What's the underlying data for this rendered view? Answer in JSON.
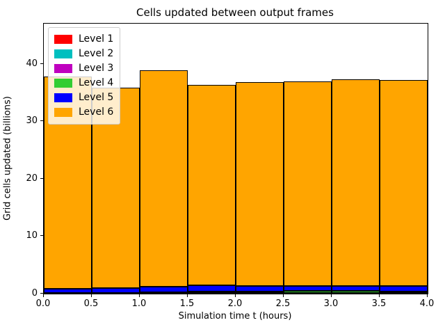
{
  "figure": {
    "background_color": "#ffffff",
    "axes_edge_color": "#000000",
    "legend_border_color": "#cccccc"
  },
  "chart_data": {
    "type": "bar",
    "stacked": true,
    "title": "Cells updated between output frames",
    "xlabel": "Simulation time t (hours)",
    "ylabel": "Grid cells updated (billions)",
    "xlim": [
      0,
      4
    ],
    "ylim": [
      0,
      47
    ],
    "bar_lefts": [
      0,
      0.5,
      1.0,
      1.5,
      2.0,
      2.5,
      3.0,
      3.5
    ],
    "bar_width": 0.5,
    "bar_edge_color": "#000000",
    "grid": false,
    "xticks": {
      "values": [
        0,
        0.5,
        1,
        1.5,
        2,
        2.5,
        3,
        3.5,
        4
      ],
      "labels": [
        "0.0",
        "0.5",
        "1.0",
        "1.5",
        "2.0",
        "2.5",
        "3.0",
        "3.5",
        "4.0"
      ]
    },
    "yticks": {
      "values": [
        0,
        10,
        20,
        30,
        40
      ],
      "labels": [
        "0",
        "10",
        "20",
        "30",
        "40"
      ]
    },
    "legend_position": "upper left",
    "series": [
      {
        "name": "Level 1",
        "color": "#ff0000",
        "values": [
          0.02,
          0.02,
          0.02,
          0.02,
          0.02,
          0.02,
          0.02,
          0.02
        ]
      },
      {
        "name": "Level 2",
        "color": "#00bfbf",
        "values": [
          0.03,
          0.03,
          0.03,
          0.03,
          0.03,
          0.03,
          0.03,
          0.03
        ]
      },
      {
        "name": "Level 3",
        "color": "#bf00bf",
        "values": [
          0.05,
          0.05,
          0.05,
          0.05,
          0.05,
          0.05,
          0.05,
          0.05
        ]
      },
      {
        "name": "Level 4",
        "color": "#32cd32",
        "values": [
          0.06,
          0.08,
          0.12,
          0.3,
          0.32,
          0.33,
          0.33,
          0.32
        ]
      },
      {
        "name": "Level 5",
        "color": "#0000ff",
        "values": [
          0.7,
          0.75,
          1.0,
          1.05,
          0.95,
          0.95,
          0.95,
          0.9
        ]
      },
      {
        "name": "Level 6",
        "color": "#ffa500",
        "values": [
          36.94,
          34.97,
          37.68,
          34.85,
          35.43,
          35.62,
          35.92,
          35.88
        ]
      }
    ],
    "bar_totals": [
      37.8,
      35.9,
      38.9,
      36.3,
      36.8,
      37.0,
      37.3,
      37.2
    ]
  }
}
